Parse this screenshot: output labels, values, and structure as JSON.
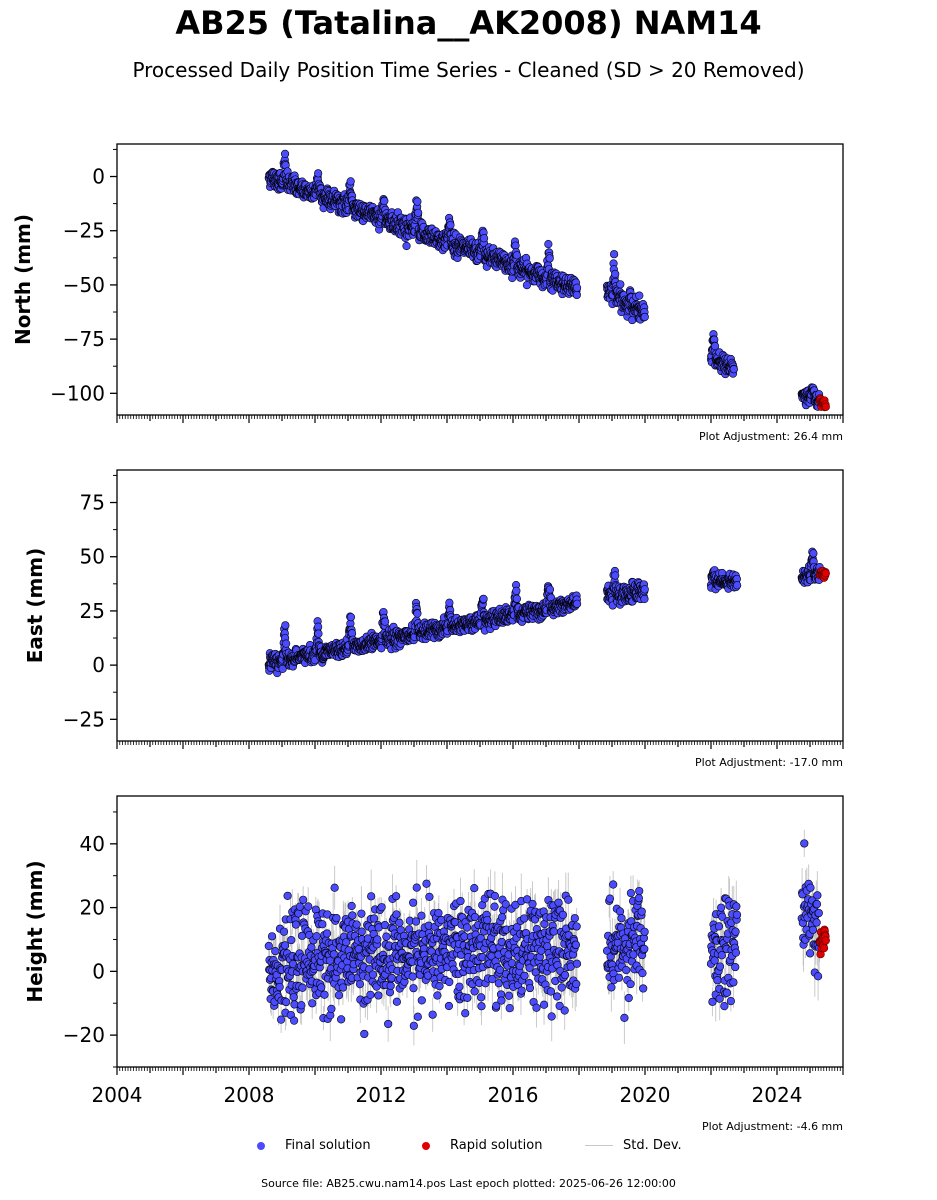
{
  "title": "AB25 (Tatalina__AK2008) NAM14",
  "subtitle": "Processed Daily Position Time Series - Cleaned (SD > 20 Removed)",
  "source_note": "Source file: AB25.cwu.nam14.pos  Last epoch plotted: 2025-06-26 12:00:00",
  "legend": {
    "final": "Final solution",
    "rapid": "Rapid solution",
    "sd": "Std. Dev."
  },
  "colors": {
    "final": "#4b4bff",
    "rapid": "#e00000",
    "sd": "#b4b4b4",
    "edge": "#000000"
  },
  "chart_data": [
    {
      "type": "scatter",
      "panel": "north",
      "ylabel": "North (mm)",
      "adjustment": "Plot Adjustment: 26.4 mm",
      "xlim": [
        2004.0,
        2026.0
      ],
      "ylim": [
        -110,
        15
      ],
      "yticks": [
        0,
        -25,
        -50,
        -75,
        -100
      ],
      "xticks": [],
      "segments": [
        {
          "start": 2008.6,
          "end": 2017.95,
          "y0": 0,
          "y1": -52,
          "noise": 2.2,
          "spike": 10,
          "density": 3
        },
        {
          "start": 2018.85,
          "end": 2020.0,
          "y0": -52,
          "y1": -64,
          "noise": 2.5,
          "spike": 14,
          "density": 3
        },
        {
          "start": 2022.0,
          "end": 2022.7,
          "y0": -83,
          "y1": -89,
          "noise": 1.8,
          "spike": 10,
          "density": 3
        },
        {
          "start": 2024.75,
          "end": 2025.3,
          "y0": -100,
          "y1": -104,
          "noise": 1.5,
          "spike": 5,
          "density": 3
        }
      ],
      "rapid": {
        "start": 2025.3,
        "end": 2025.49,
        "y0": -104,
        "y1": -106,
        "noise": 0.8
      }
    },
    {
      "type": "scatter",
      "panel": "east",
      "ylabel": "East (mm)",
      "adjustment": "Plot Adjustment: -17.0 mm",
      "xlim": [
        2004.0,
        2026.0
      ],
      "ylim": [
        -35,
        90
      ],
      "yticks": [
        75,
        50,
        25,
        0,
        -25
      ],
      "xticks": [],
      "segments": [
        {
          "start": 2008.6,
          "end": 2017.95,
          "y0": 1,
          "y1": 29,
          "noise": 1.8,
          "spike": 12,
          "density": 3
        },
        {
          "start": 2018.85,
          "end": 2020.0,
          "y0": 32,
          "y1": 34,
          "noise": 2.2,
          "spike": 9,
          "density": 3
        },
        {
          "start": 2022.0,
          "end": 2022.8,
          "y0": 38,
          "y1": 39,
          "noise": 1.5,
          "spike": 6,
          "density": 3
        },
        {
          "start": 2024.75,
          "end": 2025.3,
          "y0": 41,
          "y1": 42,
          "noise": 1.5,
          "spike": 10,
          "density": 3
        }
      ],
      "rapid": {
        "start": 2025.3,
        "end": 2025.49,
        "y0": 42,
        "y1": 42,
        "noise": 0.8
      }
    },
    {
      "type": "scatter",
      "panel": "height",
      "ylabel": "Height (mm)",
      "adjustment": "Plot Adjustment: -4.6 mm",
      "xlim": [
        2004.0,
        2026.0
      ],
      "ylim": [
        -30,
        55
      ],
      "yticks": [
        40,
        20,
        0,
        -20
      ],
      "xticks": [
        2004,
        2008,
        2012,
        2016,
        2020,
        2024
      ],
      "segments": [
        {
          "start": 2008.6,
          "end": 2017.95,
          "y0": 3,
          "y1": 8,
          "noise": 8,
          "spike": 0,
          "density": 4
        },
        {
          "start": 2018.85,
          "end": 2020.0,
          "y0": 8,
          "y1": 10,
          "noise": 8,
          "spike": 0,
          "density": 4
        },
        {
          "start": 2022.0,
          "end": 2022.8,
          "y0": 5,
          "y1": 12,
          "noise": 9,
          "spike": 0,
          "density": 4
        },
        {
          "start": 2024.75,
          "end": 2025.3,
          "y0": 20,
          "y1": 12,
          "noise": 7,
          "spike": 0,
          "density": 4
        }
      ],
      "rapid": {
        "start": 2025.3,
        "end": 2025.49,
        "y0": 10,
        "y1": 10,
        "noise": 2.5
      }
    }
  ]
}
